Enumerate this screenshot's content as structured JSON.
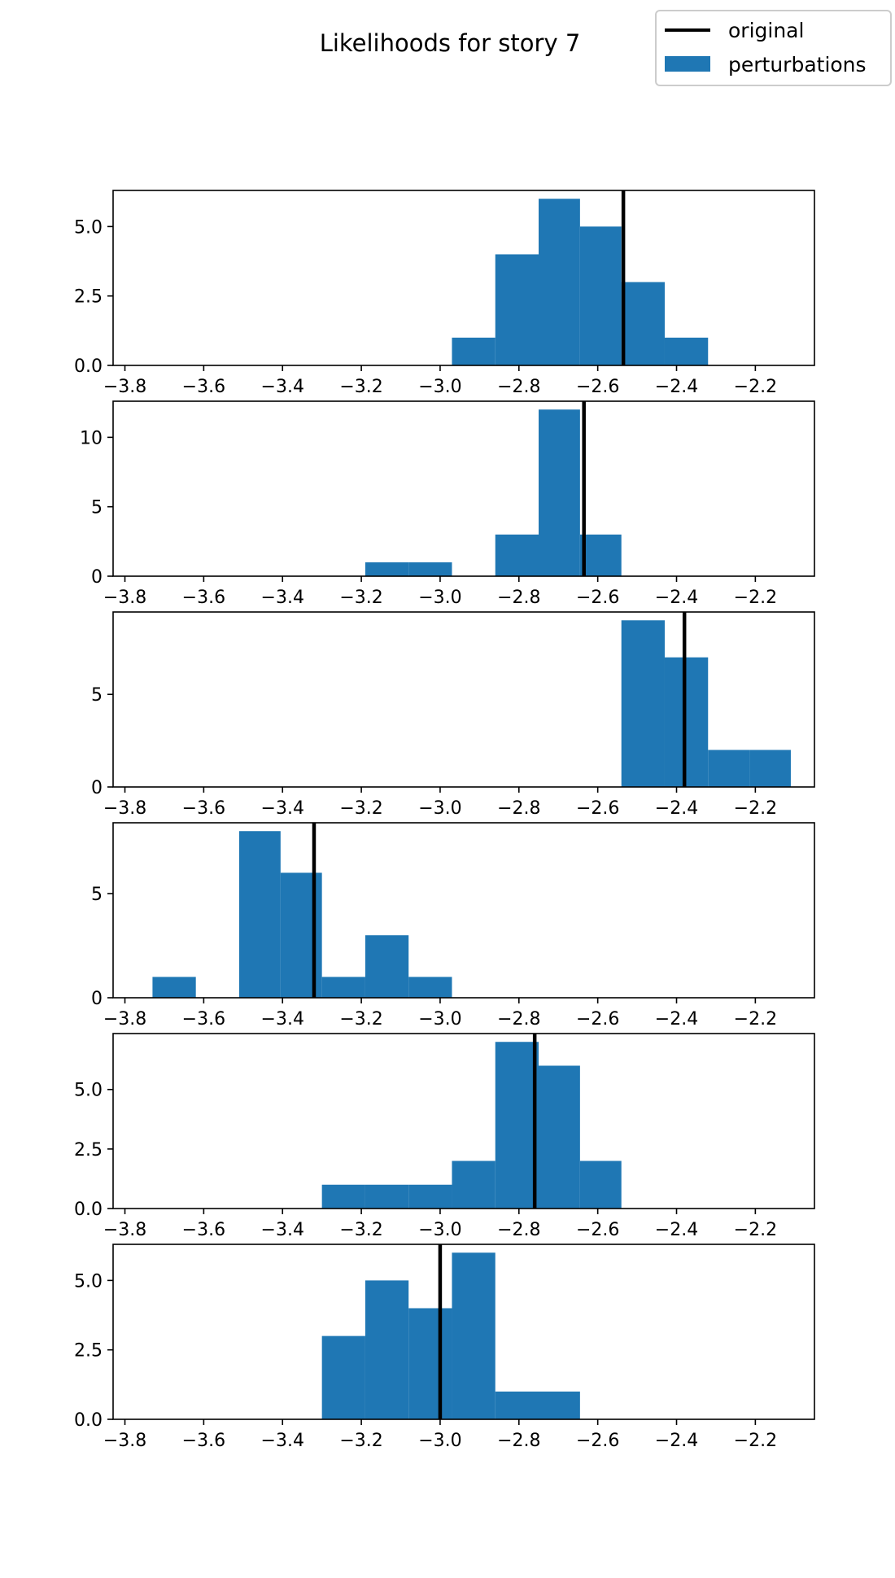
{
  "chart_data": {
    "type": "histogram",
    "title": "Likelihoods for story 7",
    "legend": {
      "placement": "top-right",
      "entries": [
        {
          "name": "original",
          "kind": "line",
          "color": "#000000"
        },
        {
          "name": "perturbations",
          "kind": "patch",
          "color": "#1f77b4"
        }
      ]
    },
    "xlim": [
      -3.83,
      -2.05
    ],
    "x_ticks": [
      -3.8,
      -3.6,
      -3.4,
      -3.2,
      -3.0,
      -2.8,
      -2.6,
      -2.4,
      -2.2
    ],
    "x_tick_labels": [
      "−3.8",
      "−3.6",
      "−3.4",
      "−3.2",
      "−3.0",
      "−2.8",
      "−2.6",
      "−2.4",
      "−2.2"
    ],
    "panels": [
      {
        "ylim": [
          0,
          6.3
        ],
        "y_ticks": [
          0,
          2.5,
          5
        ],
        "y_tick_labels": [
          "0.0",
          "2.5",
          "5.0"
        ],
        "original": -2.535,
        "bins": [
          [
            -2.97,
            -2.86,
            1
          ],
          [
            -2.86,
            -2.75,
            4
          ],
          [
            -2.75,
            -2.645,
            6
          ],
          [
            -2.645,
            -2.54,
            5
          ],
          [
            -2.54,
            -2.43,
            3
          ],
          [
            -2.43,
            -2.32,
            1
          ]
        ]
      },
      {
        "ylim": [
          0,
          12.6
        ],
        "y_ticks": [
          0,
          5,
          10
        ],
        "y_tick_labels": [
          "0",
          "5",
          "10"
        ],
        "original": -2.635,
        "bins": [
          [
            -3.19,
            -3.08,
            1
          ],
          [
            -3.08,
            -2.97,
            1
          ],
          [
            -2.86,
            -2.75,
            3
          ],
          [
            -2.75,
            -2.645,
            12
          ],
          [
            -2.645,
            -2.54,
            3
          ]
        ]
      },
      {
        "ylim": [
          0,
          9.45
        ],
        "y_ticks": [
          0,
          5
        ],
        "y_tick_labels": [
          "0",
          "5"
        ],
        "original": -2.38,
        "bins": [
          [
            -2.54,
            -2.43,
            9
          ],
          [
            -2.43,
            -2.32,
            7
          ],
          [
            -2.32,
            -2.215,
            2
          ],
          [
            -2.215,
            -2.11,
            2
          ]
        ]
      },
      {
        "ylim": [
          0,
          8.4
        ],
        "y_ticks": [
          0,
          5
        ],
        "y_tick_labels": [
          "0",
          "5"
        ],
        "original": -3.32,
        "bins": [
          [
            -3.73,
            -3.62,
            1
          ],
          [
            -3.51,
            -3.405,
            8
          ],
          [
            -3.405,
            -3.3,
            6
          ],
          [
            -3.3,
            -3.19,
            1
          ],
          [
            -3.19,
            -3.08,
            3
          ],
          [
            -3.08,
            -2.97,
            1
          ]
        ]
      },
      {
        "ylim": [
          0,
          7.35
        ],
        "y_ticks": [
          0,
          2.5,
          5
        ],
        "y_tick_labels": [
          "0.0",
          "2.5",
          "5.0"
        ],
        "original": -2.76,
        "bins": [
          [
            -3.3,
            -3.19,
            1
          ],
          [
            -3.19,
            -3.08,
            1
          ],
          [
            -3.08,
            -2.97,
            1
          ],
          [
            -2.97,
            -2.86,
            2
          ],
          [
            -2.86,
            -2.75,
            7
          ],
          [
            -2.75,
            -2.645,
            6
          ],
          [
            -2.645,
            -2.54,
            2
          ]
        ]
      },
      {
        "ylim": [
          0,
          6.3
        ],
        "y_ticks": [
          0,
          2.5,
          5
        ],
        "y_tick_labels": [
          "0.0",
          "2.5",
          "5.0"
        ],
        "original": -3.0,
        "bins": [
          [
            -3.3,
            -3.19,
            3
          ],
          [
            -3.19,
            -3.08,
            5
          ],
          [
            -3.08,
            -2.97,
            4
          ],
          [
            -2.97,
            -2.86,
            6
          ],
          [
            -2.86,
            -2.75,
            1
          ],
          [
            -2.75,
            -2.645,
            1
          ]
        ]
      }
    ]
  }
}
